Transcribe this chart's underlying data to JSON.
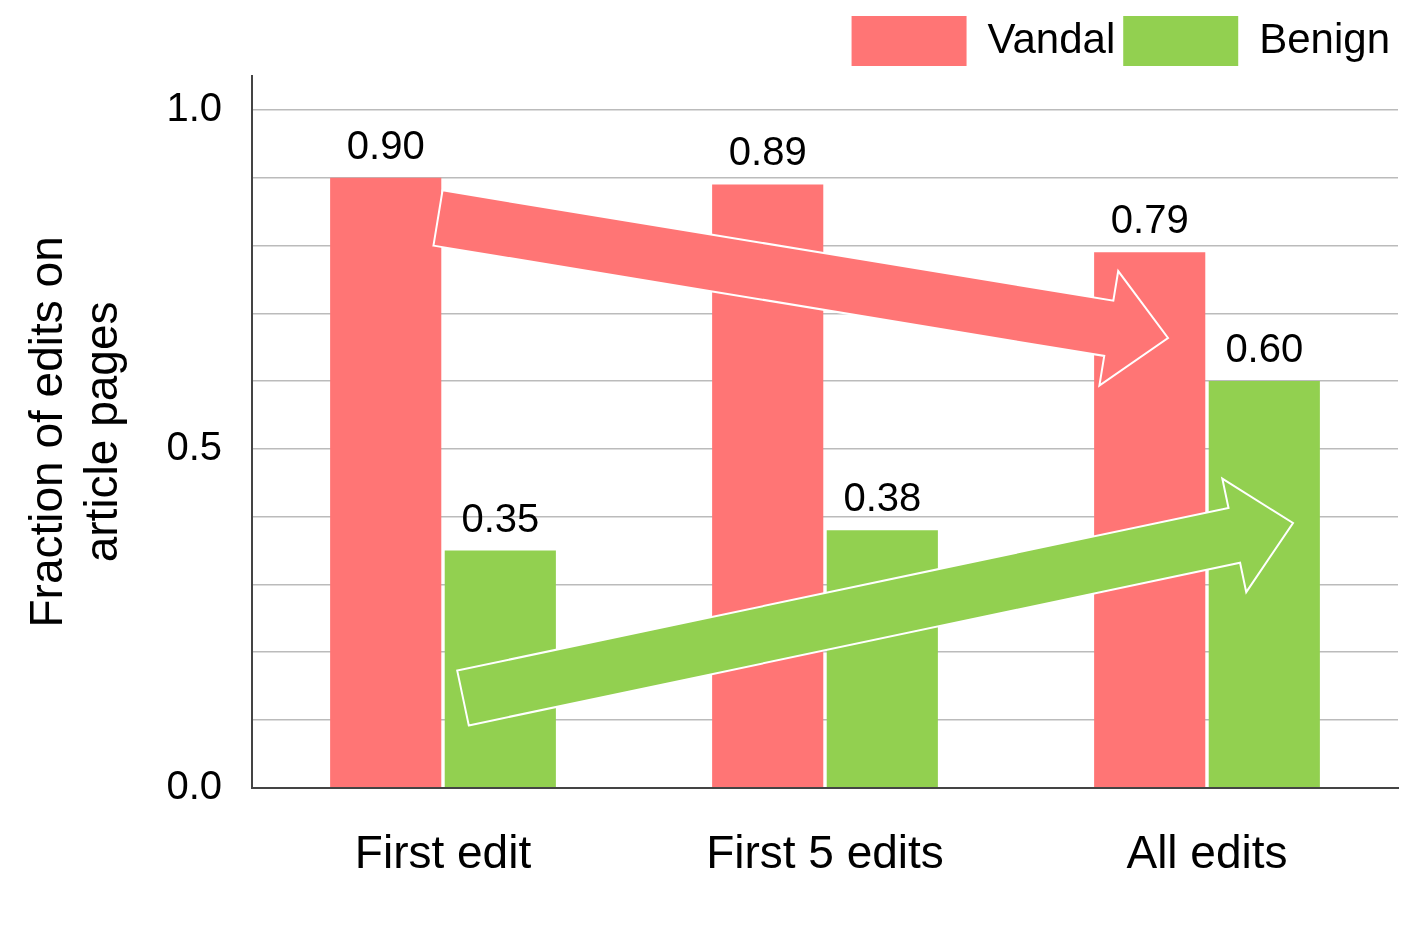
{
  "chart_data": {
    "type": "bar",
    "ylabel": "Fraction of edits on\narticle pages",
    "categories": [
      "First edit",
      "First 5 edits",
      "All edits"
    ],
    "series": [
      {
        "name": "Vandal",
        "color": "#ff7575",
        "values": [
          0.9,
          0.89,
          0.79
        ],
        "value_labels": [
          "0.90",
          "0.89",
          "0.79"
        ]
      },
      {
        "name": "Benign",
        "color": "#92d050",
        "values": [
          0.35,
          0.38,
          0.6
        ],
        "value_labels": [
          "0.35",
          "0.38",
          "0.60"
        ]
      }
    ],
    "ylim": [
      0,
      1.05
    ],
    "yticks": [
      {
        "value": 0,
        "label": "0.0"
      },
      {
        "value": 0.1,
        "label": null
      },
      {
        "value": 0.2,
        "label": null
      },
      {
        "value": 0.3,
        "label": null
      },
      {
        "value": 0.4,
        "label": null
      },
      {
        "value": 0.5,
        "label": "0.5"
      },
      {
        "value": 0.6,
        "label": null
      },
      {
        "value": 0.7,
        "label": null
      },
      {
        "value": 0.8,
        "label": null
      },
      {
        "value": 0.9,
        "label": null
      },
      {
        "value": 1.0,
        "label": "1.0"
      }
    ],
    "grid": "y",
    "legend": "top right"
  }
}
